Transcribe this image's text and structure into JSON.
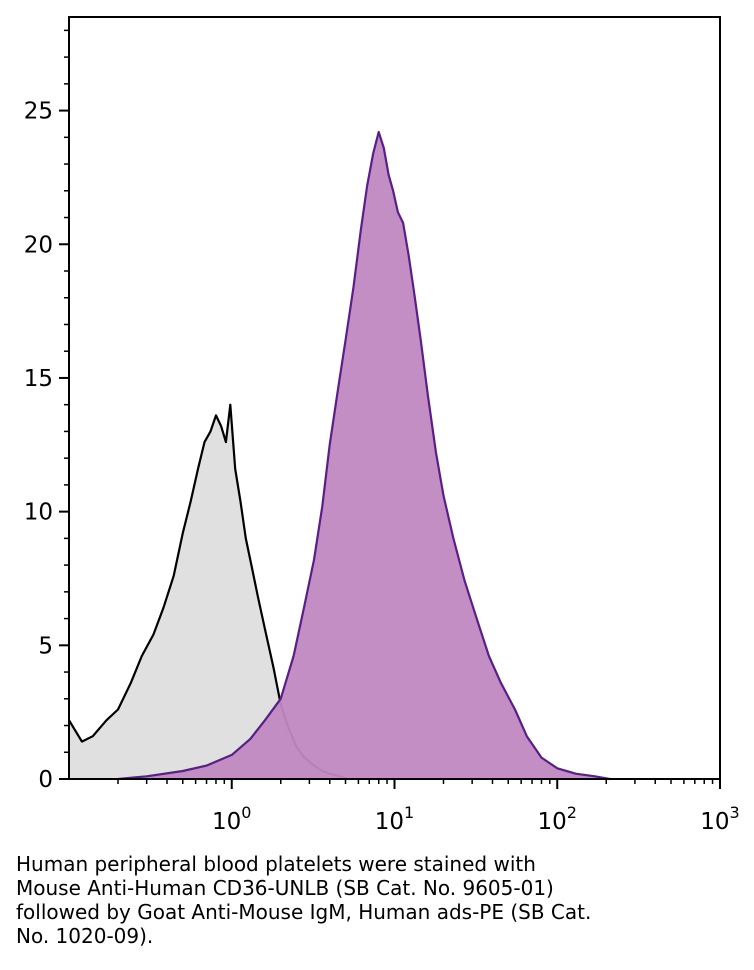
{
  "chart_data": {
    "type": "area",
    "x_scale": "log",
    "xlim": [
      0.1,
      1000
    ],
    "ylim": [
      0,
      28.5
    ],
    "x_ticks": [
      {
        "value": 1,
        "base": "10",
        "exp": "0"
      },
      {
        "value": 10,
        "base": "10",
        "exp": "1"
      },
      {
        "value": 100,
        "base": "10",
        "exp": "2"
      },
      {
        "value": 1000,
        "base": "10",
        "exp": "3"
      }
    ],
    "y_ticks": [
      0,
      5,
      10,
      15,
      20,
      25
    ],
    "grid": false,
    "series": [
      {
        "fill": "#e0e0e0",
        "stroke": "#000000",
        "x": [
          0.1,
          0.12,
          0.14,
          0.17,
          0.2,
          0.24,
          0.28,
          0.33,
          0.38,
          0.44,
          0.5,
          0.56,
          0.62,
          0.68,
          0.74,
          0.8,
          0.86,
          0.92,
          0.98,
          1.05,
          1.13,
          1.22,
          1.32,
          1.45,
          1.6,
          1.8,
          2.0,
          2.2,
          2.5,
          2.8,
          3.2,
          3.6,
          4.0,
          4.6,
          5.2
        ],
        "y": [
          2.2,
          1.4,
          1.6,
          2.2,
          2.6,
          3.6,
          4.6,
          5.4,
          6.4,
          7.6,
          9.2,
          10.4,
          11.6,
          12.6,
          13.0,
          13.6,
          13.2,
          12.6,
          14.0,
          11.6,
          10.4,
          9.0,
          8.0,
          6.8,
          5.6,
          4.2,
          2.8,
          2.0,
          1.2,
          0.8,
          0.5,
          0.3,
          0.2,
          0.1,
          0.0
        ]
      },
      {
        "fill": "#c088c0",
        "stroke": "#5a1e88",
        "x": [
          0.2,
          0.3,
          0.5,
          0.7,
          1.0,
          1.3,
          1.6,
          2.0,
          2.4,
          2.8,
          3.2,
          3.6,
          4.0,
          4.5,
          5.0,
          5.6,
          6.2,
          6.8,
          7.4,
          8.0,
          8.6,
          9.2,
          9.8,
          10.5,
          11.3,
          12.2,
          13.2,
          14.5,
          16.0,
          18.0,
          20.0,
          23.0,
          27.0,
          32.0,
          38.0,
          45.0,
          55.0,
          65.0,
          80.0,
          100.0,
          130.0,
          170.0,
          210.0
        ],
        "y": [
          0.0,
          0.1,
          0.3,
          0.5,
          0.9,
          1.5,
          2.2,
          3.0,
          4.6,
          6.5,
          8.2,
          10.2,
          12.5,
          14.6,
          16.4,
          18.4,
          20.5,
          22.2,
          23.4,
          24.2,
          23.6,
          22.6,
          22.0,
          21.2,
          20.8,
          19.6,
          18.2,
          16.4,
          14.4,
          12.2,
          10.6,
          9.0,
          7.4,
          6.0,
          4.6,
          3.6,
          2.6,
          1.6,
          0.8,
          0.4,
          0.2,
          0.1,
          0.0
        ]
      }
    ]
  },
  "caption": {
    "lines": [
      "Human peripheral blood platelets were stained with",
      "Mouse Anti-Human CD36-UNLB (SB Cat. No. 9605-01)",
      "followed by Goat Anti-Mouse IgM, Human ads-PE (SB Cat.",
      "No. 1020-09)."
    ]
  }
}
